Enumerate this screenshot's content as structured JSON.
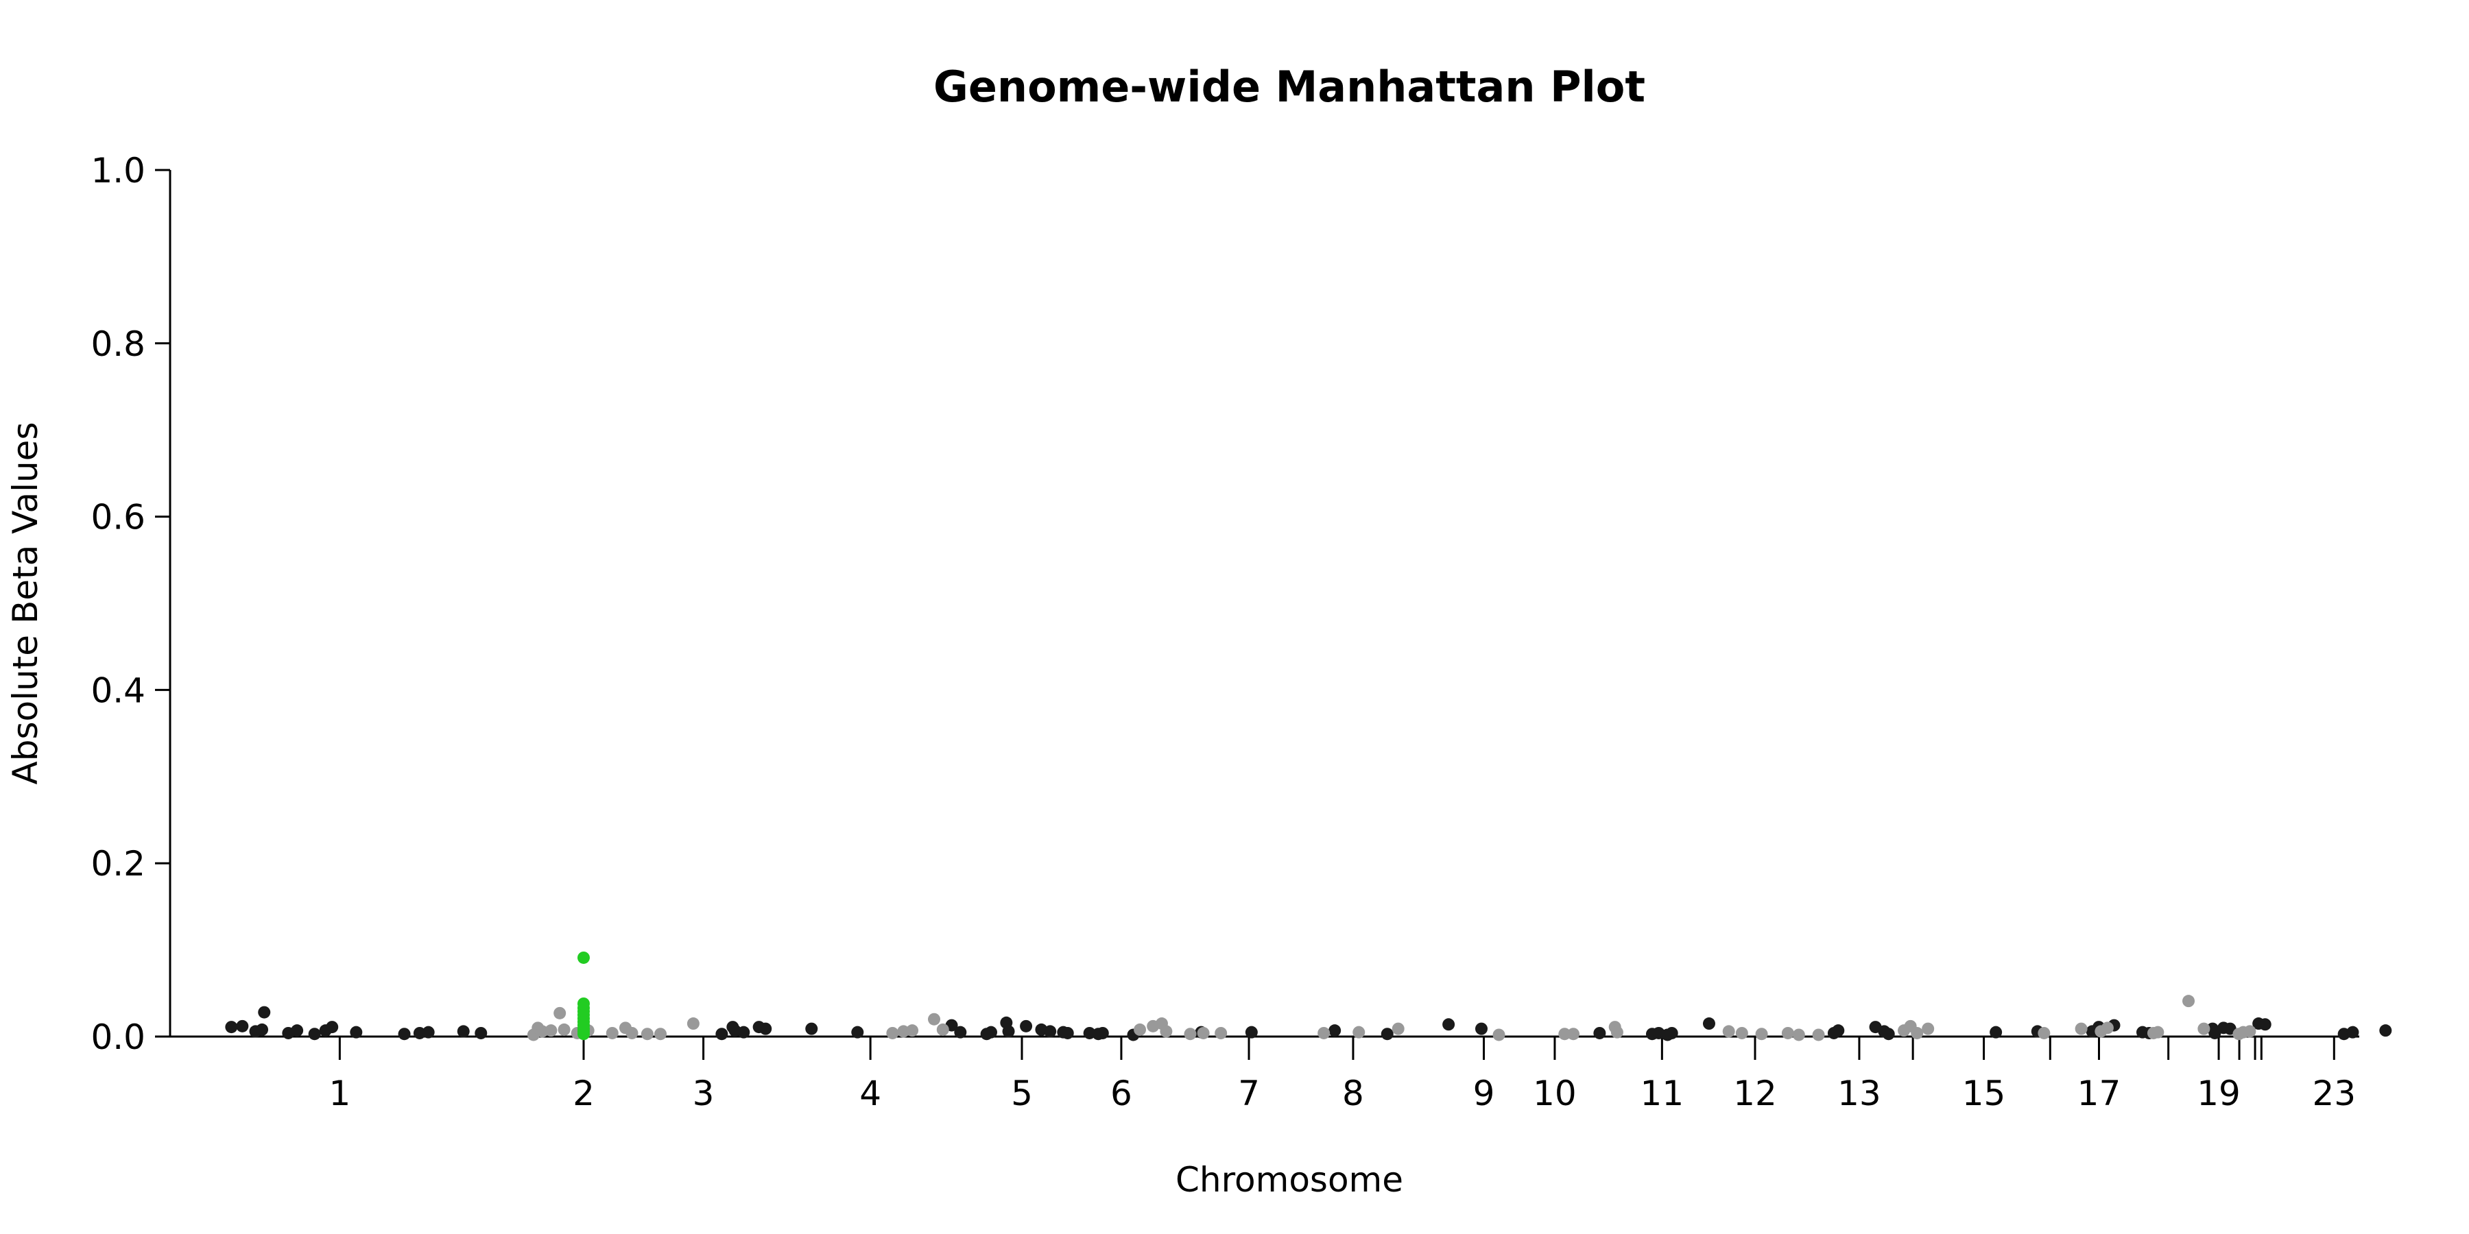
{
  "chart_data": {
    "type": "scatter",
    "title": "Genome-wide Manhattan Plot",
    "xlabel": "Chromosome",
    "ylabel": "Absolute Beta Values",
    "ylim": [
      0,
      1
    ],
    "y_ticks": [
      "0.0",
      "0.2",
      "0.4",
      "0.6",
      "0.8",
      "1.0"
    ],
    "grid": false,
    "legend": "none",
    "colors": {
      "dark": "#1a1a1a",
      "light": "#999999",
      "highlight": "#22cc22"
    },
    "x_ticks": [
      {
        "label": "1",
        "pos": 0.0775
      },
      {
        "label": "2",
        "pos": 0.1889
      },
      {
        "label": "3",
        "pos": 0.2436
      },
      {
        "label": "4",
        "pos": 0.3199
      },
      {
        "label": "5",
        "pos": 0.3891
      },
      {
        "label": "6",
        "pos": 0.4345
      },
      {
        "label": "7",
        "pos": 0.4928
      },
      {
        "label": "8",
        "pos": 0.5404
      },
      {
        "label": "9",
        "pos": 0.6001
      },
      {
        "label": "10",
        "pos": 0.6325
      },
      {
        "label": "11",
        "pos": 0.6815
      },
      {
        "label": "12",
        "pos": 0.724
      },
      {
        "label": "13",
        "pos": 0.7716
      },
      {
        "label": "",
        "pos": 0.7961
      },
      {
        "label": "15",
        "pos": 0.8285
      },
      {
        "label": "",
        "pos": 0.8588
      },
      {
        "label": "17",
        "pos": 0.8811
      },
      {
        "label": "",
        "pos": 0.9128
      },
      {
        "label": "19",
        "pos": 0.9358
      },
      {
        "label": "",
        "pos": 0.9452
      },
      {
        "label": "",
        "pos": 0.9524
      },
      {
        "label": "",
        "pos": 0.9553
      },
      {
        "label": "23",
        "pos": 0.9885
      }
    ],
    "series": [
      {
        "color": "dark",
        "points": [
          [
            0.028,
            0.011
          ],
          [
            0.033,
            0.012
          ],
          [
            0.039,
            0.006
          ],
          [
            0.043,
            0.028
          ],
          [
            0.042,
            0.008
          ],
          [
            0.054,
            0.004
          ],
          [
            0.058,
            0.007
          ],
          [
            0.066,
            0.003
          ],
          [
            0.071,
            0.007
          ],
          [
            0.074,
            0.011
          ],
          [
            0.085,
            0.005
          ],
          [
            0.107,
            0.003
          ],
          [
            0.114,
            0.004
          ],
          [
            0.118,
            0.005
          ],
          [
            0.134,
            0.006
          ],
          [
            0.142,
            0.004
          ],
          [
            0.252,
            0.003
          ],
          [
            0.257,
            0.011
          ],
          [
            0.258,
            0.007
          ],
          [
            0.262,
            0.005
          ],
          [
            0.269,
            0.011
          ],
          [
            0.272,
            0.009
          ],
          [
            0.293,
            0.009
          ],
          [
            0.314,
            0.005
          ],
          [
            0.357,
            0.013
          ],
          [
            0.361,
            0.005
          ],
          [
            0.373,
            0.003
          ],
          [
            0.375,
            0.005
          ],
          [
            0.382,
            0.016
          ],
          [
            0.383,
            0.006
          ],
          [
            0.391,
            0.012
          ],
          [
            0.398,
            0.008
          ],
          [
            0.402,
            0.006
          ],
          [
            0.408,
            0.005
          ],
          [
            0.41,
            0.004
          ],
          [
            0.42,
            0.004
          ],
          [
            0.424,
            0.003
          ],
          [
            0.426,
            0.004
          ],
          [
            0.44,
            0.002
          ],
          [
            0.471,
            0.005
          ],
          [
            0.494,
            0.005
          ],
          [
            0.532,
            0.007
          ],
          [
            0.556,
            0.003
          ],
          [
            0.584,
            0.014
          ],
          [
            0.599,
            0.009
          ],
          [
            0.653,
            0.004
          ],
          [
            0.677,
            0.003
          ],
          [
            0.68,
            0.004
          ],
          [
            0.684,
            0.002
          ],
          [
            0.686,
            0.004
          ],
          [
            0.703,
            0.015
          ],
          [
            0.76,
            0.004
          ],
          [
            0.762,
            0.007
          ],
          [
            0.779,
            0.011
          ],
          [
            0.783,
            0.006
          ],
          [
            0.785,
            0.003
          ],
          [
            0.834,
            0.005
          ],
          [
            0.853,
            0.006
          ],
          [
            0.878,
            0.006
          ],
          [
            0.881,
            0.011
          ],
          [
            0.888,
            0.013
          ],
          [
            0.901,
            0.005
          ],
          [
            0.904,
            0.004
          ],
          [
            0.933,
            0.009
          ],
          [
            0.934,
            0.004
          ],
          [
            0.938,
            0.01
          ],
          [
            0.941,
            0.009
          ],
          [
            0.954,
            0.015
          ],
          [
            0.957,
            0.014
          ],
          [
            0.993,
            0.003
          ],
          [
            0.997,
            0.005
          ],
          [
            1.012,
            0.007
          ]
        ]
      },
      {
        "color": "light",
        "points": [
          [
            0.166,
            0.002
          ],
          [
            0.168,
            0.01
          ],
          [
            0.17,
            0.006
          ],
          [
            0.174,
            0.007
          ],
          [
            0.178,
            0.027
          ],
          [
            0.18,
            0.008
          ],
          [
            0.186,
            0.004
          ],
          [
            0.191,
            0.007
          ],
          [
            0.202,
            0.004
          ],
          [
            0.208,
            0.01
          ],
          [
            0.211,
            0.004
          ],
          [
            0.218,
            0.003
          ],
          [
            0.224,
            0.003
          ],
          [
            0.239,
            0.015
          ],
          [
            0.33,
            0.004
          ],
          [
            0.335,
            0.006
          ],
          [
            0.339,
            0.007
          ],
          [
            0.349,
            0.02
          ],
          [
            0.353,
            0.008
          ],
          [
            0.443,
            0.008
          ],
          [
            0.449,
            0.012
          ],
          [
            0.453,
            0.015
          ],
          [
            0.455,
            0.006
          ],
          [
            0.466,
            0.003
          ],
          [
            0.472,
            0.004
          ],
          [
            0.48,
            0.004
          ],
          [
            0.527,
            0.004
          ],
          [
            0.543,
            0.005
          ],
          [
            0.561,
            0.009
          ],
          [
            0.607,
            0.002
          ],
          [
            0.637,
            0.003
          ],
          [
            0.641,
            0.003
          ],
          [
            0.66,
            0.011
          ],
          [
            0.661,
            0.005
          ],
          [
            0.712,
            0.006
          ],
          [
            0.718,
            0.004
          ],
          [
            0.727,
            0.003
          ],
          [
            0.739,
            0.004
          ],
          [
            0.744,
            0.002
          ],
          [
            0.753,
            0.002
          ],
          [
            0.792,
            0.007
          ],
          [
            0.795,
            0.012
          ],
          [
            0.798,
            0.004
          ],
          [
            0.803,
            0.009
          ],
          [
            0.856,
            0.004
          ],
          [
            0.873,
            0.009
          ],
          [
            0.882,
            0.006
          ],
          [
            0.885,
            0.01
          ],
          [
            0.906,
            0.004
          ],
          [
            0.908,
            0.005
          ],
          [
            0.922,
            0.041
          ],
          [
            0.929,
            0.009
          ],
          [
            0.945,
            0.003
          ],
          [
            0.947,
            0.005
          ],
          [
            0.95,
            0.006
          ]
        ]
      },
      {
        "color": "highlight",
        "points": [
          [
            0.1889,
            0.091
          ],
          [
            0.1889,
            0.038
          ],
          [
            0.1889,
            0.033
          ],
          [
            0.1889,
            0.029
          ],
          [
            0.1889,
            0.025
          ],
          [
            0.1889,
            0.021
          ],
          [
            0.1889,
            0.017
          ],
          [
            0.1889,
            0.013
          ],
          [
            0.1889,
            0.009
          ],
          [
            0.1889,
            0.006
          ],
          [
            0.1889,
            0.003
          ]
        ]
      }
    ]
  }
}
